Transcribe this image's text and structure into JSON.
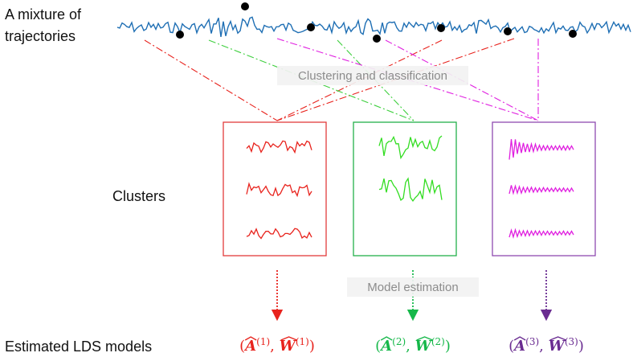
{
  "labels": {
    "mixture_line1": "A mixture of",
    "mixture_line2": "trajectories",
    "clusters": "Clusters",
    "clustering": "Clustering and classification",
    "model_estimation": "Model estimation",
    "estimated": "Estimated LDS models"
  },
  "models": [
    {
      "sym_a": "A",
      "sym_w": "W",
      "index": "(1)",
      "color": "#e8231d"
    },
    {
      "sym_a": "A",
      "sym_w": "W",
      "index": "(2)",
      "color": "#16b84a"
    },
    {
      "sym_a": "A",
      "sym_w": "W",
      "index": "(3)",
      "color": "#6a2c91"
    }
  ],
  "colors": {
    "trajectory": "#1f6fb4",
    "cluster1": "#e8231d",
    "cluster2": "#33dd22",
    "cluster3": "#e020e0",
    "box1": "#e23b3b",
    "box2": "#24b04a",
    "box3": "#8e4ab0",
    "arrow1": "#e8231d",
    "arrow2": "#16b84a",
    "arrow3": "#6a2c91"
  }
}
